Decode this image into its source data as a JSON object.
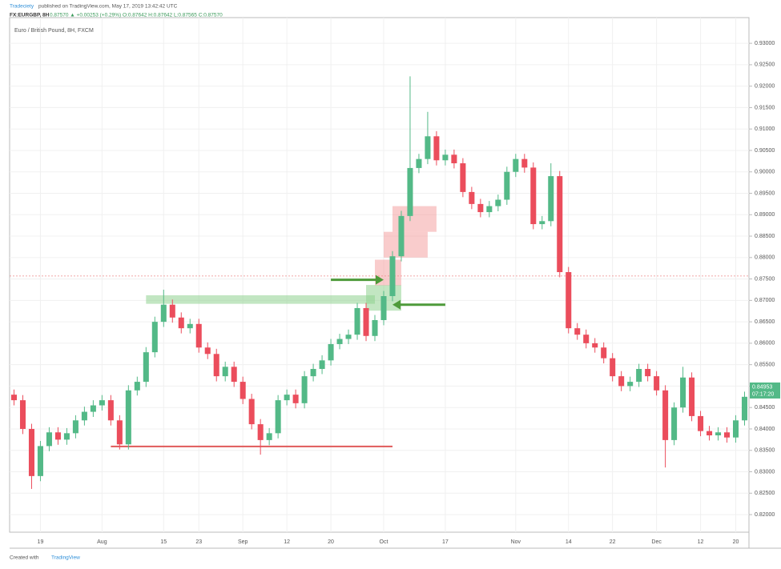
{
  "header": {
    "publisher": "Tradeciety",
    "published": "published on TradingView.com, May 17, 2019 13:42:42 UTC",
    "symbol": "FX:EURGBP, 8H",
    "quote": "0.87570 ▲ +0.00253 (+0.29%) O:0.87642 H:0.87642 L:0.87565 C:0.87570"
  },
  "footer": {
    "created": "Created with",
    "brand": "TradingView"
  },
  "chart_data": {
    "type": "candlestick",
    "title": "Euro / British Pound, 8H, FXCM",
    "categories": [
      null,
      null,
      null,
      "19",
      null,
      null,
      null,
      null,
      null,
      null,
      "Aug",
      null,
      null,
      null,
      null,
      null,
      null,
      "15",
      null,
      null,
      null,
      "23",
      null,
      null,
      null,
      null,
      "Sep",
      null,
      null,
      null,
      null,
      "12",
      null,
      null,
      null,
      null,
      "20",
      null,
      null,
      null,
      null,
      null,
      "Oct",
      null,
      null,
      null,
      null,
      null,
      null,
      "17",
      null,
      null,
      null,
      null,
      null,
      null,
      null,
      "Nov",
      null,
      null,
      null,
      null,
      null,
      "14",
      null,
      null,
      null,
      null,
      "22",
      null,
      null,
      null,
      null,
      "Dec",
      null,
      null,
      null,
      null,
      "12",
      null,
      null,
      null,
      "20",
      null
    ],
    "open": [
      0.848,
      0.8467,
      0.84,
      0.829,
      0.836,
      0.8392,
      0.8375,
      0.839,
      0.842,
      0.844,
      0.8455,
      0.8467,
      0.842,
      0.8364,
      0.849,
      0.851,
      0.8579,
      0.865,
      0.869,
      0.866,
      0.8635,
      0.8645,
      0.859,
      0.8575,
      0.8523,
      0.8545,
      0.851,
      0.847,
      0.8411,
      0.8374,
      0.839,
      0.8467,
      0.848,
      0.846,
      0.8523,
      0.854,
      0.856,
      0.8598,
      0.861,
      0.862,
      0.8682,
      0.8617,
      0.8654,
      0.871,
      0.8803,
      0.8897,
      0.9009,
      0.903,
      0.9083,
      0.9027,
      0.904,
      0.902,
      0.8953,
      0.8925,
      0.8906,
      0.892,
      0.8935,
      0.9,
      0.903,
      0.901,
      0.8878,
      0.8885,
      0.899,
      0.8766,
      0.8635,
      0.862,
      0.86,
      0.859,
      0.8565,
      0.8523,
      0.85,
      0.851,
      0.854,
      0.8523,
      0.849,
      0.8374,
      0.845,
      0.852,
      0.843,
      0.8395,
      0.8385,
      0.8392,
      0.838,
      0.842
    ],
    "high": [
      0.8492,
      0.8479,
      0.8412,
      0.8372,
      0.8404,
      0.8404,
      0.8402,
      0.8432,
      0.8452,
      0.8467,
      0.8479,
      0.8479,
      0.8432,
      0.8502,
      0.8522,
      0.8591,
      0.8662,
      0.8725,
      0.8702,
      0.8672,
      0.8657,
      0.8657,
      0.8602,
      0.8587,
      0.8557,
      0.8557,
      0.8522,
      0.8482,
      0.8423,
      0.8402,
      0.8479,
      0.8492,
      0.8492,
      0.8535,
      0.8552,
      0.8572,
      0.861,
      0.8622,
      0.8632,
      0.8694,
      0.8694,
      0.8666,
      0.8722,
      0.8815,
      0.8909,
      0.9223,
      0.9042,
      0.914,
      0.9095,
      0.9052,
      0.9052,
      0.9032,
      0.8965,
      0.8937,
      0.8932,
      0.8947,
      0.9012,
      0.9042,
      0.9042,
      0.9022,
      0.8897,
      0.902,
      0.9002,
      0.8778,
      0.8647,
      0.8632,
      0.8612,
      0.8602,
      0.8577,
      0.8535,
      0.8522,
      0.8552,
      0.8552,
      0.8535,
      0.8502,
      0.8462,
      0.8545,
      0.8532,
      0.8442,
      0.8407,
      0.8404,
      0.8404,
      0.8432,
      0.8487
    ],
    "low": [
      0.8455,
      0.8388,
      0.826,
      0.8278,
      0.8348,
      0.8363,
      0.8363,
      0.8378,
      0.8408,
      0.8428,
      0.8443,
      0.8408,
      0.8352,
      0.8352,
      0.8478,
      0.8498,
      0.8567,
      0.8638,
      0.8648,
      0.8623,
      0.8623,
      0.8578,
      0.8563,
      0.8511,
      0.8511,
      0.8498,
      0.8458,
      0.8399,
      0.834,
      0.8362,
      0.8378,
      0.8455,
      0.8448,
      0.8448,
      0.8511,
      0.8528,
      0.8548,
      0.8586,
      0.8598,
      0.8608,
      0.8605,
      0.8605,
      0.8642,
      0.8698,
      0.8791,
      0.8885,
      0.8997,
      0.9018,
      0.9015,
      0.9015,
      0.9008,
      0.8941,
      0.8913,
      0.8894,
      0.8894,
      0.8908,
      0.8923,
      0.8988,
      0.8998,
      0.8866,
      0.8866,
      0.8873,
      0.8754,
      0.8623,
      0.8608,
      0.8588,
      0.8578,
      0.8553,
      0.8511,
      0.8488,
      0.8488,
      0.8498,
      0.8511,
      0.8478,
      0.831,
      0.8362,
      0.8438,
      0.8418,
      0.8383,
      0.8373,
      0.8373,
      0.8368,
      0.8368,
      0.8408
    ],
    "close": [
      0.8467,
      0.84,
      0.829,
      0.836,
      0.8392,
      0.8375,
      0.839,
      0.842,
      0.844,
      0.8455,
      0.8467,
      0.842,
      0.8364,
      0.849,
      0.851,
      0.8579,
      0.865,
      0.869,
      0.866,
      0.8635,
      0.8645,
      0.859,
      0.8575,
      0.8523,
      0.8545,
      0.851,
      0.847,
      0.8411,
      0.8374,
      0.839,
      0.8467,
      0.848,
      0.846,
      0.8523,
      0.854,
      0.856,
      0.8598,
      0.861,
      0.862,
      0.8682,
      0.8617,
      0.8654,
      0.871,
      0.8803,
      0.8897,
      0.9009,
      0.903,
      0.9083,
      0.9027,
      0.904,
      0.902,
      0.8953,
      0.8925,
      0.8906,
      0.892,
      0.8935,
      0.9,
      0.903,
      0.901,
      0.8878,
      0.8885,
      0.899,
      0.8766,
      0.8635,
      0.862,
      0.86,
      0.859,
      0.8565,
      0.8523,
      0.85,
      0.851,
      0.854,
      0.8523,
      0.849,
      0.8374,
      0.845,
      0.852,
      0.843,
      0.8395,
      0.8385,
      0.8392,
      0.838,
      0.842,
      0.8475
    ],
    "up_color": "#53b987",
    "down_color": "#eb4d5c",
    "ylim": [
      0.8159,
      0.936
    ],
    "yticks": [
      {
        "value": 0.82,
        "label": "0.82000"
      },
      {
        "value": 0.825,
        "label": "0.82500"
      },
      {
        "value": 0.83,
        "label": "0.83000"
      },
      {
        "value": 0.835,
        "label": "0.83500"
      },
      {
        "value": 0.84,
        "label": "0.84000"
      },
      {
        "value": 0.845,
        "label": "0.84500"
      },
      {
        "value": 0.85,
        "label": "0.85000"
      },
      {
        "value": 0.855,
        "label": "0.85500"
      },
      {
        "value": 0.86,
        "label": "0.86000"
      },
      {
        "value": 0.865,
        "label": "0.86500"
      },
      {
        "value": 0.87,
        "label": "0.87000"
      },
      {
        "value": 0.875,
        "label": "0.87500"
      },
      {
        "value": 0.88,
        "label": "0.88000"
      },
      {
        "value": 0.885,
        "label": "0.88500"
      },
      {
        "value": 0.89,
        "label": "0.89000"
      },
      {
        "value": 0.895,
        "label": "0.89500"
      },
      {
        "value": 0.9,
        "label": "0.90000"
      },
      {
        "value": 0.905,
        "label": "0.90500"
      },
      {
        "value": 0.91,
        "label": "0.91000"
      },
      {
        "value": 0.915,
        "label": "0.91500"
      },
      {
        "value": 0.92,
        "label": "0.92000"
      },
      {
        "value": 0.925,
        "label": "0.92500"
      },
      {
        "value": 0.93,
        "label": "0.93000"
      }
    ],
    "grid": true,
    "last_price": 0.84953,
    "countdown": "07:17:20",
    "price_line": 0.8757,
    "support": {
      "price": 0.8359,
      "from": 11,
      "to": 43,
      "color": "#e05a5a"
    },
    "zones": [
      {
        "low": 0.8692,
        "high": 0.8712,
        "from": 15,
        "to": 41,
        "color": "#8fd18f"
      },
      {
        "low": 0.8676,
        "high": 0.8736,
        "from": 40,
        "to": 44,
        "color": "#8fd18f"
      },
      {
        "low": 0.8735,
        "high": 0.8795,
        "from": 41,
        "to": 44,
        "color": "#f4a3a3"
      },
      {
        "low": 0.88,
        "high": 0.886,
        "from": 42,
        "to": 47,
        "color": "#f4a3a3"
      },
      {
        "low": 0.886,
        "high": 0.892,
        "from": 43,
        "to": 48,
        "color": "#f4a3a3"
      }
    ],
    "arrows": [
      {
        "price": 0.8748,
        "from": 36,
        "to": 42,
        "color": "#4e9a3a"
      },
      {
        "price": 0.869,
        "from": 49,
        "to": 43,
        "color": "#4e9a3a"
      }
    ]
  }
}
